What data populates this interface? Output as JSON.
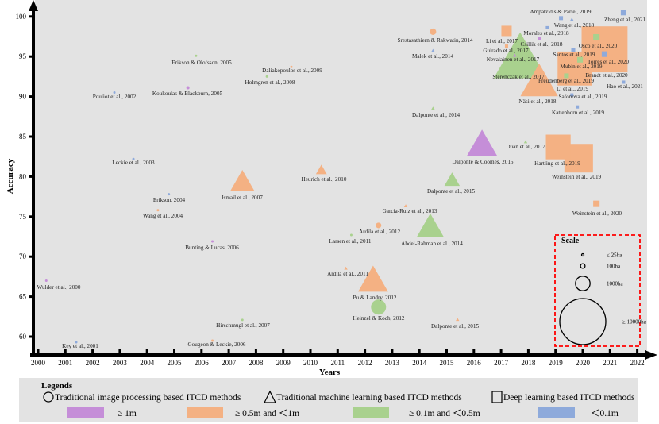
{
  "colors": {
    "res_ge_1m": "#c58ed8",
    "res_05_1m": "#f4b183",
    "res_01_05m": "#a9d18e",
    "res_lt_01m": "#8eaadb",
    "plot_bg": "#e3e3e3",
    "legend_bg": "#e3e3e3",
    "scale_border": "#ff0000"
  },
  "chart_data": {
    "type": "scatter",
    "xlabel": "Years",
    "ylabel": "Accuracy",
    "xlim": [
      2000,
      2022
    ],
    "ylim": [
      58,
      101
    ],
    "x_ticks": [
      "2000",
      "2001",
      "2002",
      "2003",
      "2004",
      "2005",
      "2006",
      "2007",
      "2008",
      "2009",
      "2010",
      "2011",
      "2012",
      "2013",
      "2014",
      "2015",
      "2016",
      "2017",
      "2018",
      "2019",
      "2020",
      "2021",
      "2022"
    ],
    "y_ticks": [
      "60",
      "65",
      "70",
      "75",
      "80",
      "85",
      "90",
      "95",
      "100"
    ],
    "grid": false,
    "points": [
      {
        "label": "Wulder et al., 2000",
        "year": 2000.3,
        "accuracy": 67.0,
        "shape": "circle",
        "resolution": "res_ge_1m",
        "area_ha": 25
      },
      {
        "label": "Key et al., 2001",
        "year": 2001.4,
        "accuracy": 59.3,
        "shape": "circle",
        "resolution": "res_lt_01m",
        "area_ha": 25
      },
      {
        "label": "Pouliot et al., 2002",
        "year": 2002.8,
        "accuracy": 90.5,
        "shape": "circle",
        "resolution": "res_lt_01m",
        "area_ha": 25
      },
      {
        "label": "Leckie et al., 2003",
        "year": 2003.5,
        "accuracy": 82.2,
        "shape": "circle",
        "resolution": "res_lt_01m",
        "area_ha": 25
      },
      {
        "label": "Erikson, 2004",
        "year": 2004.8,
        "accuracy": 77.8,
        "shape": "circle",
        "resolution": "res_lt_01m",
        "area_ha": 25
      },
      {
        "label": "Wang et al., 2004",
        "year": 2004.4,
        "accuracy": 75.8,
        "shape": "circle",
        "resolution": "res_05_1m",
        "area_ha": 25
      },
      {
        "label": "Erikson &  Olofsson, 2005",
        "year": 2005.8,
        "accuracy": 95.1,
        "shape": "circle",
        "resolution": "res_01_05m",
        "area_ha": 25
      },
      {
        "label": "Koukoulas &  Blackburn, 2005",
        "year": 2005.5,
        "accuracy": 91.1,
        "shape": "circle",
        "resolution": "res_ge_1m",
        "area_ha": 45
      },
      {
        "label": "Bunting & Lucas, 2006",
        "year": 2006.4,
        "accuracy": 71.9,
        "shape": "circle",
        "resolution": "res_ge_1m",
        "area_ha": 25
      },
      {
        "label": "Gougeon & Leckie, 2006",
        "year": 2006.4,
        "accuracy": 59.5,
        "shape": "circle",
        "resolution": "res_05_1m",
        "area_ha": 25
      },
      {
        "label": "Hirschmugl et al., 2007",
        "year": 2007.5,
        "accuracy": 62.1,
        "shape": "circle",
        "resolution": "res_01_05m",
        "area_ha": 25
      },
      {
        "label": "Ismail et al., 2007",
        "year": 2007.5,
        "accuracy": 79.1,
        "shape": "triangle",
        "resolution": "res_05_1m",
        "area_ha": 1900
      },
      {
        "label": "Holmgren et al., 2008",
        "year": 2008.4,
        "accuracy": 92.5,
        "shape": "circle",
        "resolution": "res_01_05m",
        "area_ha": 25
      },
      {
        "label": "Daliakopoulos et al., 2009",
        "year": 2009.3,
        "accuracy": 93.7,
        "shape": "circle",
        "resolution": "res_05_1m",
        "area_ha": 25
      },
      {
        "label": "Heurich et al., 2010",
        "year": 2010.4,
        "accuracy": 80.7,
        "shape": "triangle",
        "resolution": "res_05_1m",
        "area_ha": 400
      },
      {
        "label": "Larsen et al., 2011",
        "year": 2011.5,
        "accuracy": 72.7,
        "shape": "circle",
        "resolution": "res_01_05m",
        "area_ha": 25
      },
      {
        "label": "Ardila et al., 2011",
        "year": 2011.3,
        "accuracy": 68.5,
        "shape": "triangle",
        "resolution": "res_05_1m",
        "area_ha": 40
      },
      {
        "label": "Ardila et al., 2012",
        "year": 2012.5,
        "accuracy": 73.9,
        "shape": "circle",
        "resolution": "res_05_1m",
        "area_ha": 140
      },
      {
        "label": "Pu & Landry, 2012",
        "year": 2012.3,
        "accuracy": 66.7,
        "shape": "triangle",
        "resolution": "res_05_1m",
        "area_ha": 3000
      },
      {
        "label": "Heinzel & Koch, 2012",
        "year": 2012.5,
        "accuracy": 63.7,
        "shape": "circle",
        "resolution": "res_01_05m",
        "area_ha": 1000
      },
      {
        "label": "Garcia-Ruiz et al., 2013",
        "year": 2013.5,
        "accuracy": 76.3,
        "shape": "triangle",
        "resolution": "res_05_1m",
        "area_ha": 40
      },
      {
        "label": "Abdel-Rahman et al., 2014",
        "year": 2014.4,
        "accuracy": 73.4,
        "shape": "triangle",
        "resolution": "res_01_05m",
        "area_ha": 2500
      },
      {
        "label": "Dalponte et al., 2015",
        "year": 2015.2,
        "accuracy": 79.4,
        "shape": "triangle",
        "resolution": "res_01_05m",
        "area_ha": 800
      },
      {
        "label": "Dalponte & Coomes, 2015",
        "year": 2016.3,
        "accuracy": 83.7,
        "shape": "triangle",
        "resolution": "res_ge_1m",
        "area_ha": 3000
      },
      {
        "label": "Dalponte et al., 2015",
        "year": 2015.4,
        "accuracy": 62.1,
        "shape": "triangle",
        "resolution": "res_05_1m",
        "area_ha": 40
      },
      {
        "label": "Dalponte et al., 2014",
        "year": 2014.5,
        "accuracy": 88.5,
        "shape": "triangle",
        "resolution": "res_01_05m",
        "area_ha": 40
      },
      {
        "label": "Srestasathiern &  Rakwatin, 2014",
        "year": 2014.5,
        "accuracy": 98.1,
        "shape": "circle",
        "resolution": "res_05_1m",
        "area_ha": 180
      },
      {
        "label": "Malek et al., 2014",
        "year": 2014.5,
        "accuracy": 95.7,
        "shape": "triangle",
        "resolution": "res_lt_01m",
        "area_ha": 40
      },
      {
        "label": "Sterenczak et al., 2017",
        "year": 2017.7,
        "accuracy": 94.2,
        "shape": "triangle",
        "resolution": "res_01_05m",
        "area_ha": 9300
      },
      {
        "label": "Näsi et al., 2018",
        "year": 2018.4,
        "accuracy": 91.4,
        "shape": "triangle",
        "resolution": "res_05_1m",
        "area_ha": 4700
      },
      {
        "label": "Li et al., 2017",
        "year": 2017.2,
        "accuracy": 98.2,
        "shape": "square",
        "resolution": "res_05_1m",
        "area_ha": 470
      },
      {
        "label": "Guirado et al., 2017",
        "year": 2017.2,
        "accuracy": 96.3,
        "shape": "square",
        "resolution": "res_05_1m",
        "area_ha": 45
      },
      {
        "label": "Nevalainen et al., 2017",
        "year": 2017.5,
        "accuracy": 95.1,
        "shape": "triangle",
        "resolution": "res_ge_1m",
        "area_ha": 40
      },
      {
        "label": "Duan et al., 2017",
        "year": 2017.9,
        "accuracy": 84.3,
        "shape": "triangle",
        "resolution": "res_01_05m",
        "area_ha": 40
      },
      {
        "label": "Morales et al., 2018",
        "year": 2018.7,
        "accuracy": 98.6,
        "shape": "square",
        "resolution": "res_lt_01m",
        "area_ha": 45
      },
      {
        "label": "Csillik et al., 2018",
        "year": 2018.4,
        "accuracy": 97.3,
        "shape": "square",
        "resolution": "res_ge_1m",
        "area_ha": 45
      },
      {
        "label": "Ampatzidis & Partel, 2019",
        "year": 2019.2,
        "accuracy": 99.8,
        "shape": "square",
        "resolution": "res_lt_01m",
        "area_ha": 70
      },
      {
        "label": "Wang et al., 2018",
        "year": 2019.6,
        "accuracy": 99.6,
        "shape": "triangle",
        "resolution": "res_lt_01m",
        "area_ha": 40
      },
      {
        "label": "Zheng et al., 2021",
        "year": 2021.5,
        "accuracy": 100.5,
        "shape": "square",
        "resolution": "res_lt_01m",
        "area_ha": 140
      },
      {
        "label": "Brandt et al., 2020",
        "year": 2020.8,
        "accuracy": 95.9,
        "shape": "square",
        "resolution": "res_05_1m",
        "area_ha": 9300
      },
      {
        "label": "Li et al., 2019",
        "year": 2019.7,
        "accuracy": 93.5,
        "shape": "square",
        "resolution": "res_05_1m",
        "area_ha": 5100
      },
      {
        "label": "Osco et al., 2020",
        "year": 2020.5,
        "accuracy": 97.4,
        "shape": "square",
        "resolution": "res_01_05m",
        "area_ha": 180
      },
      {
        "label": "Torres et al., 2020",
        "year": 2020.8,
        "accuracy": 95.3,
        "shape": "square",
        "resolution": "res_lt_01m",
        "area_ha": 140
      },
      {
        "label": "Santos et al., 2019",
        "year": 2019.65,
        "accuracy": 95.8,
        "shape": "square",
        "resolution": "res_lt_01m",
        "area_ha": 70
      },
      {
        "label": "Mubin et al., 2019",
        "year": 2019.9,
        "accuracy": 94.6,
        "shape": "square",
        "resolution": "res_01_05m",
        "area_ha": 140
      },
      {
        "label": "Freudenberg et al., 2019",
        "year": 2019.4,
        "accuracy": 92.6,
        "shape": "square",
        "resolution": "res_01_05m",
        "area_ha": 100
      },
      {
        "label": "Hao et al., 2021",
        "year": 2021.5,
        "accuracy": 91.8,
        "shape": "square",
        "resolution": "res_lt_01m",
        "area_ha": 45
      },
      {
        "label": "Safonova et al., 2019",
        "year": 2019.6,
        "accuracy": 90.2,
        "shape": "square",
        "resolution": "res_lt_01m",
        "area_ha": 45
      },
      {
        "label": "Kattenborn et al., 2019",
        "year": 2019.8,
        "accuracy": 88.7,
        "shape": "square",
        "resolution": "res_lt_01m",
        "area_ha": 45
      },
      {
        "label": "Hartling et al., 2019",
        "year": 2019.1,
        "accuracy": 83.7,
        "shape": "square",
        "resolution": "res_05_1m",
        "area_ha": 2700
      },
      {
        "label": "Weinstein et al., 2019",
        "year": 2019.85,
        "accuracy": 82.3,
        "shape": "square",
        "resolution": "res_05_1m",
        "area_ha": 3600
      },
      {
        "label": "Weinstein et al., 2020",
        "year": 2020.5,
        "accuracy": 76.6,
        "shape": "square",
        "resolution": "res_05_1m",
        "area_ha": 180
      }
    ],
    "scale": {
      "title": "Scale",
      "items": [
        {
          "label": "≤ 25ha",
          "area_ha": 25
        },
        {
          "label": "100ha",
          "area_ha": 100
        },
        {
          "label": "1000ha",
          "area_ha": 1000
        },
        {
          "label": "≥ 10000ha",
          "area_ha": 10000
        }
      ]
    },
    "legend": {
      "title": "Legends",
      "shapes": [
        {
          "shape": "circle",
          "label": "Traditional image processing based ITCD methods"
        },
        {
          "shape": "triangle",
          "label": "Traditional machine learning based ITCD methods"
        },
        {
          "shape": "square",
          "label": "Deep learning based ITCD methods"
        }
      ],
      "resolutions": [
        {
          "key": "res_ge_1m",
          "label": "≥ 1m"
        },
        {
          "key": "res_05_1m",
          "label": "≥ 0.5m and ＜1m"
        },
        {
          "key": "res_01_05m",
          "label": "≥ 0.1m and ＜0.5m"
        },
        {
          "key": "res_lt_01m",
          "label": "＜0.1m"
        }
      ]
    }
  }
}
